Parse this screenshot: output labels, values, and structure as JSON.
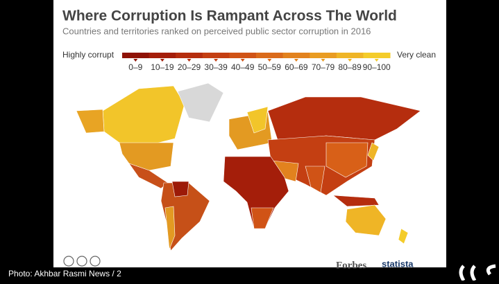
{
  "header": {
    "title": "Where Corruption Is Rampant Across The World",
    "subtitle": "Countries and territories ranked on perceived public sector corruption in 2016"
  },
  "legend": {
    "low_label": "Highly corrupt",
    "high_label": "Very clean",
    "bins": [
      "0–9",
      "10–19",
      "20–29",
      "30–39",
      "40–49",
      "50–59",
      "60–69",
      "70–79",
      "80–89",
      "90–100"
    ],
    "colors": [
      "#8e1206",
      "#a41e0a",
      "#b52d0e",
      "#c43f12",
      "#d05316",
      "#da6a1a",
      "#e2821e",
      "#e99c22",
      "#efb526",
      "#f4cc2a"
    ]
  },
  "footer": {
    "publisher": "Forbes",
    "source": "statista"
  },
  "caption": "Photo: Akhbar Rasmi News / 2"
}
